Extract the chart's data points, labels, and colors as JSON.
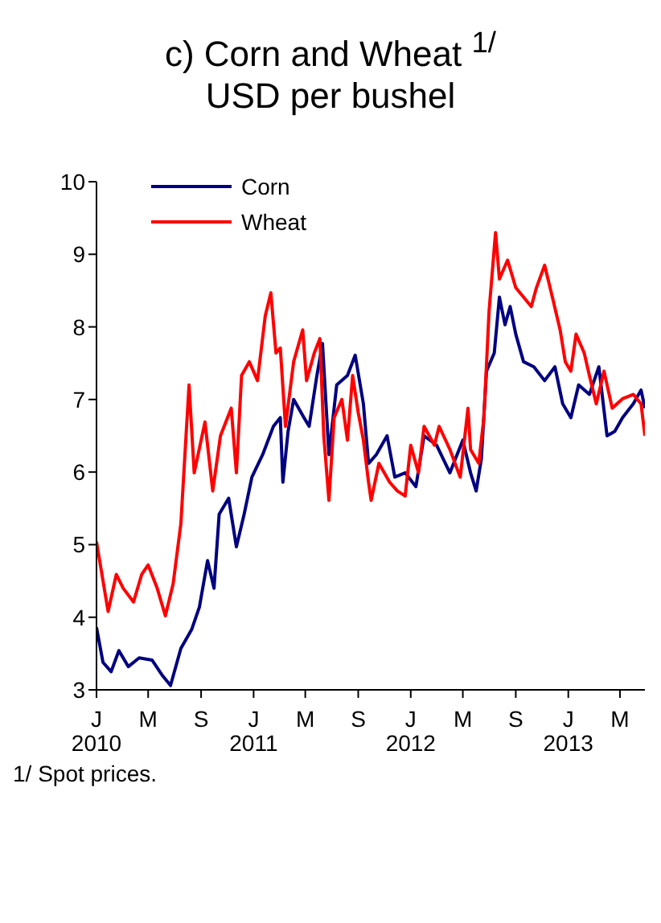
{
  "chart_data": {
    "type": "line",
    "title": "c) Corn and Wheat $^{1/}$",
    "subtitle": "USD per bushel",
    "annotations": [
      "1/ Spot prices."
    ],
    "xlim": [
      "2010-01-01",
      "2013-06-28"
    ],
    "xticks": [
      {
        "value": "2010-01-01",
        "label": "J\n2010"
      },
      {
        "value": "2010-05-01",
        "label": "M"
      },
      {
        "value": "2010-09-01",
        "label": "S"
      },
      {
        "value": "2011-01-01",
        "label": "J\n2011"
      },
      {
        "value": "2011-05-01",
        "label": "M"
      },
      {
        "value": "2011-09-01",
        "label": "S"
      },
      {
        "value": "2012-01-01",
        "label": "J\n2012"
      },
      {
        "value": "2012-05-01",
        "label": "M"
      },
      {
        "value": "2012-09-01",
        "label": "S"
      },
      {
        "value": "2013-01-01",
        "label": "J\n2013"
      },
      {
        "value": "2013-05-01",
        "label": "M"
      }
    ],
    "ylim": [
      3,
      10
    ],
    "yticks": [
      3,
      4,
      5,
      6,
      7,
      8,
      9,
      10
    ],
    "legend": "top left",
    "marker": "none",
    "line_style": "solid",
    "series": [
      {
        "name": "Corn",
        "color": "#000080",
        "x": [
          "2010-01-01",
          "2010-01-16",
          "2010-02-04",
          "2010-02-22",
          "2010-03-16",
          "2010-04-10",
          "2010-05-10",
          "2010-06-04",
          "2010-06-22",
          "2010-07-16",
          "2010-08-10",
          "2010-08-28",
          "2010-09-16",
          "2010-10-01",
          "2010-10-13",
          "2010-11-04",
          "2010-11-22",
          "2010-12-10",
          "2010-12-28",
          "2011-01-22",
          "2011-02-16",
          "2011-03-04",
          "2011-03-10",
          "2011-03-22",
          "2011-04-04",
          "2011-04-28",
          "2011-05-10",
          "2011-05-28",
          "2011-06-10",
          "2011-06-25",
          "2011-07-13",
          "2011-08-07",
          "2011-08-25",
          "2011-09-13",
          "2011-09-25",
          "2011-10-13",
          "2011-11-07",
          "2011-11-25",
          "2011-12-19",
          "2012-01-13",
          "2012-02-01",
          "2012-03-01",
          "2012-04-01",
          "2012-05-01",
          "2012-05-19",
          "2012-06-01",
          "2012-06-13",
          "2012-06-25",
          "2012-07-13",
          "2012-07-25",
          "2012-08-07",
          "2012-08-19",
          "2012-09-01",
          "2012-09-19",
          "2012-10-13",
          "2012-11-07",
          "2012-12-01",
          "2012-12-19",
          "2013-01-07",
          "2013-01-25",
          "2013-02-19",
          "2013-03-13",
          "2013-04-01",
          "2013-04-19",
          "2013-05-07",
          "2013-06-01",
          "2013-06-19",
          "2013-06-28"
        ],
        "values": [
          3.86,
          3.38,
          3.25,
          3.54,
          3.32,
          3.44,
          3.41,
          3.19,
          3.06,
          3.57,
          3.83,
          4.14,
          4.78,
          4.4,
          5.42,
          5.64,
          4.97,
          5.42,
          5.93,
          6.24,
          6.63,
          6.75,
          5.86,
          6.56,
          7.0,
          6.75,
          6.63,
          7.33,
          7.77,
          6.24,
          7.2,
          7.33,
          7.61,
          6.94,
          6.12,
          6.24,
          6.5,
          5.93,
          5.99,
          5.8,
          6.5,
          6.37,
          5.99,
          6.44,
          5.99,
          5.74,
          6.18,
          7.39,
          7.64,
          8.41,
          8.03,
          8.28,
          7.9,
          7.52,
          7.45,
          7.26,
          7.45,
          6.94,
          6.75,
          7.2,
          7.07,
          7.45,
          6.5,
          6.56,
          6.75,
          6.94,
          7.13,
          6.88
        ]
      },
      {
        "name": "Wheat",
        "color": "#ff0000",
        "x": [
          "2010-01-01",
          "2010-01-10",
          "2010-01-28",
          "2010-02-16",
          "2010-03-04",
          "2010-03-28",
          "2010-04-16",
          "2010-05-01",
          "2010-05-22",
          "2010-06-10",
          "2010-06-28",
          "2010-07-16",
          "2010-07-28",
          "2010-08-04",
          "2010-08-16",
          "2010-09-10",
          "2010-09-28",
          "2010-10-16",
          "2010-11-10",
          "2010-11-22",
          "2010-12-04",
          "2010-12-22",
          "2011-01-10",
          "2011-01-28",
          "2011-02-10",
          "2011-02-22",
          "2011-03-04",
          "2011-03-16",
          "2011-04-04",
          "2011-04-25",
          "2011-05-04",
          "2011-05-22",
          "2011-06-04",
          "2011-06-13",
          "2011-06-25",
          "2011-07-07",
          "2011-07-25",
          "2011-08-07",
          "2011-08-19",
          "2011-09-01",
          "2011-09-13",
          "2011-09-25",
          "2011-10-01",
          "2011-10-19",
          "2011-11-13",
          "2011-12-01",
          "2011-12-19",
          "2012-01-01",
          "2012-01-19",
          "2012-02-01",
          "2012-02-25",
          "2012-03-07",
          "2012-04-01",
          "2012-04-25",
          "2012-05-13",
          "2012-05-19",
          "2012-06-07",
          "2012-06-19",
          "2012-07-01",
          "2012-07-16",
          "2012-07-25",
          "2012-08-13",
          "2012-09-01",
          "2012-09-19",
          "2012-10-07",
          "2012-10-19",
          "2012-11-07",
          "2012-11-25",
          "2012-12-13",
          "2012-12-25",
          "2013-01-07",
          "2013-01-19",
          "2013-02-07",
          "2013-02-19",
          "2013-03-07",
          "2013-03-25",
          "2013-04-13",
          "2013-05-07",
          "2013-06-01",
          "2013-06-19",
          "2013-06-28"
        ],
        "values": [
          5.04,
          4.72,
          4.08,
          4.59,
          4.4,
          4.21,
          4.59,
          4.72,
          4.4,
          4.02,
          4.46,
          5.29,
          6.5,
          7.2,
          5.99,
          6.69,
          5.74,
          6.5,
          6.88,
          5.99,
          7.33,
          7.52,
          7.26,
          8.15,
          8.47,
          7.64,
          7.71,
          6.63,
          7.52,
          7.96,
          7.26,
          7.64,
          7.84,
          6.5,
          5.61,
          6.75,
          7.0,
          6.44,
          7.33,
          6.82,
          6.44,
          5.86,
          5.61,
          6.12,
          5.86,
          5.74,
          5.67,
          6.37,
          5.99,
          6.63,
          6.37,
          6.63,
          6.31,
          5.93,
          6.88,
          6.31,
          6.12,
          6.75,
          8.22,
          9.3,
          8.66,
          8.92,
          8.54,
          8.41,
          8.28,
          8.54,
          8.85,
          8.41,
          7.96,
          7.52,
          7.39,
          7.9,
          7.64,
          7.33,
          6.94,
          7.39,
          6.88,
          7.01,
          7.07,
          6.94,
          6.5
        ]
      }
    ]
  }
}
